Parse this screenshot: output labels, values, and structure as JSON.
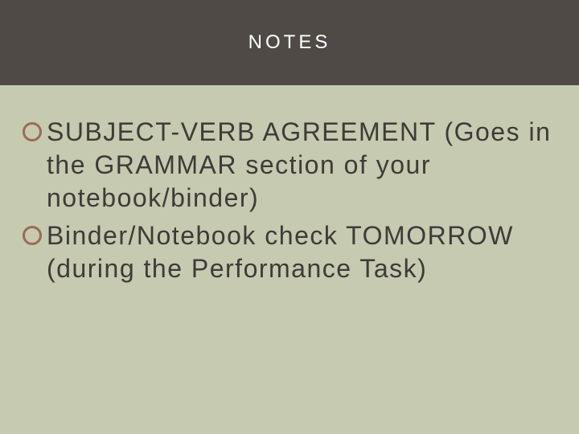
{
  "slide": {
    "title": "NOTES",
    "bullets": [
      "SUBJECT-VERB AGREEMENT (Goes in the GRAMMAR section of your notebook/binder)",
      "Binder/Notebook check TOMORROW (during the Performance Task)"
    ]
  },
  "style": {
    "background_color": "#c5cab0",
    "title_band_color": "#4f4a45",
    "title_text_color": "#ffffff",
    "title_fontsize": 24,
    "title_letter_spacing": 4,
    "body_text_color": "#3e3b37",
    "body_fontsize": 32,
    "body_letter_spacing": 1.5,
    "bullet_ring_color": "#9b6b55",
    "bullet_ring_diameter": 24,
    "bullet_ring_border": 3,
    "font_family": "Trebuchet MS"
  }
}
